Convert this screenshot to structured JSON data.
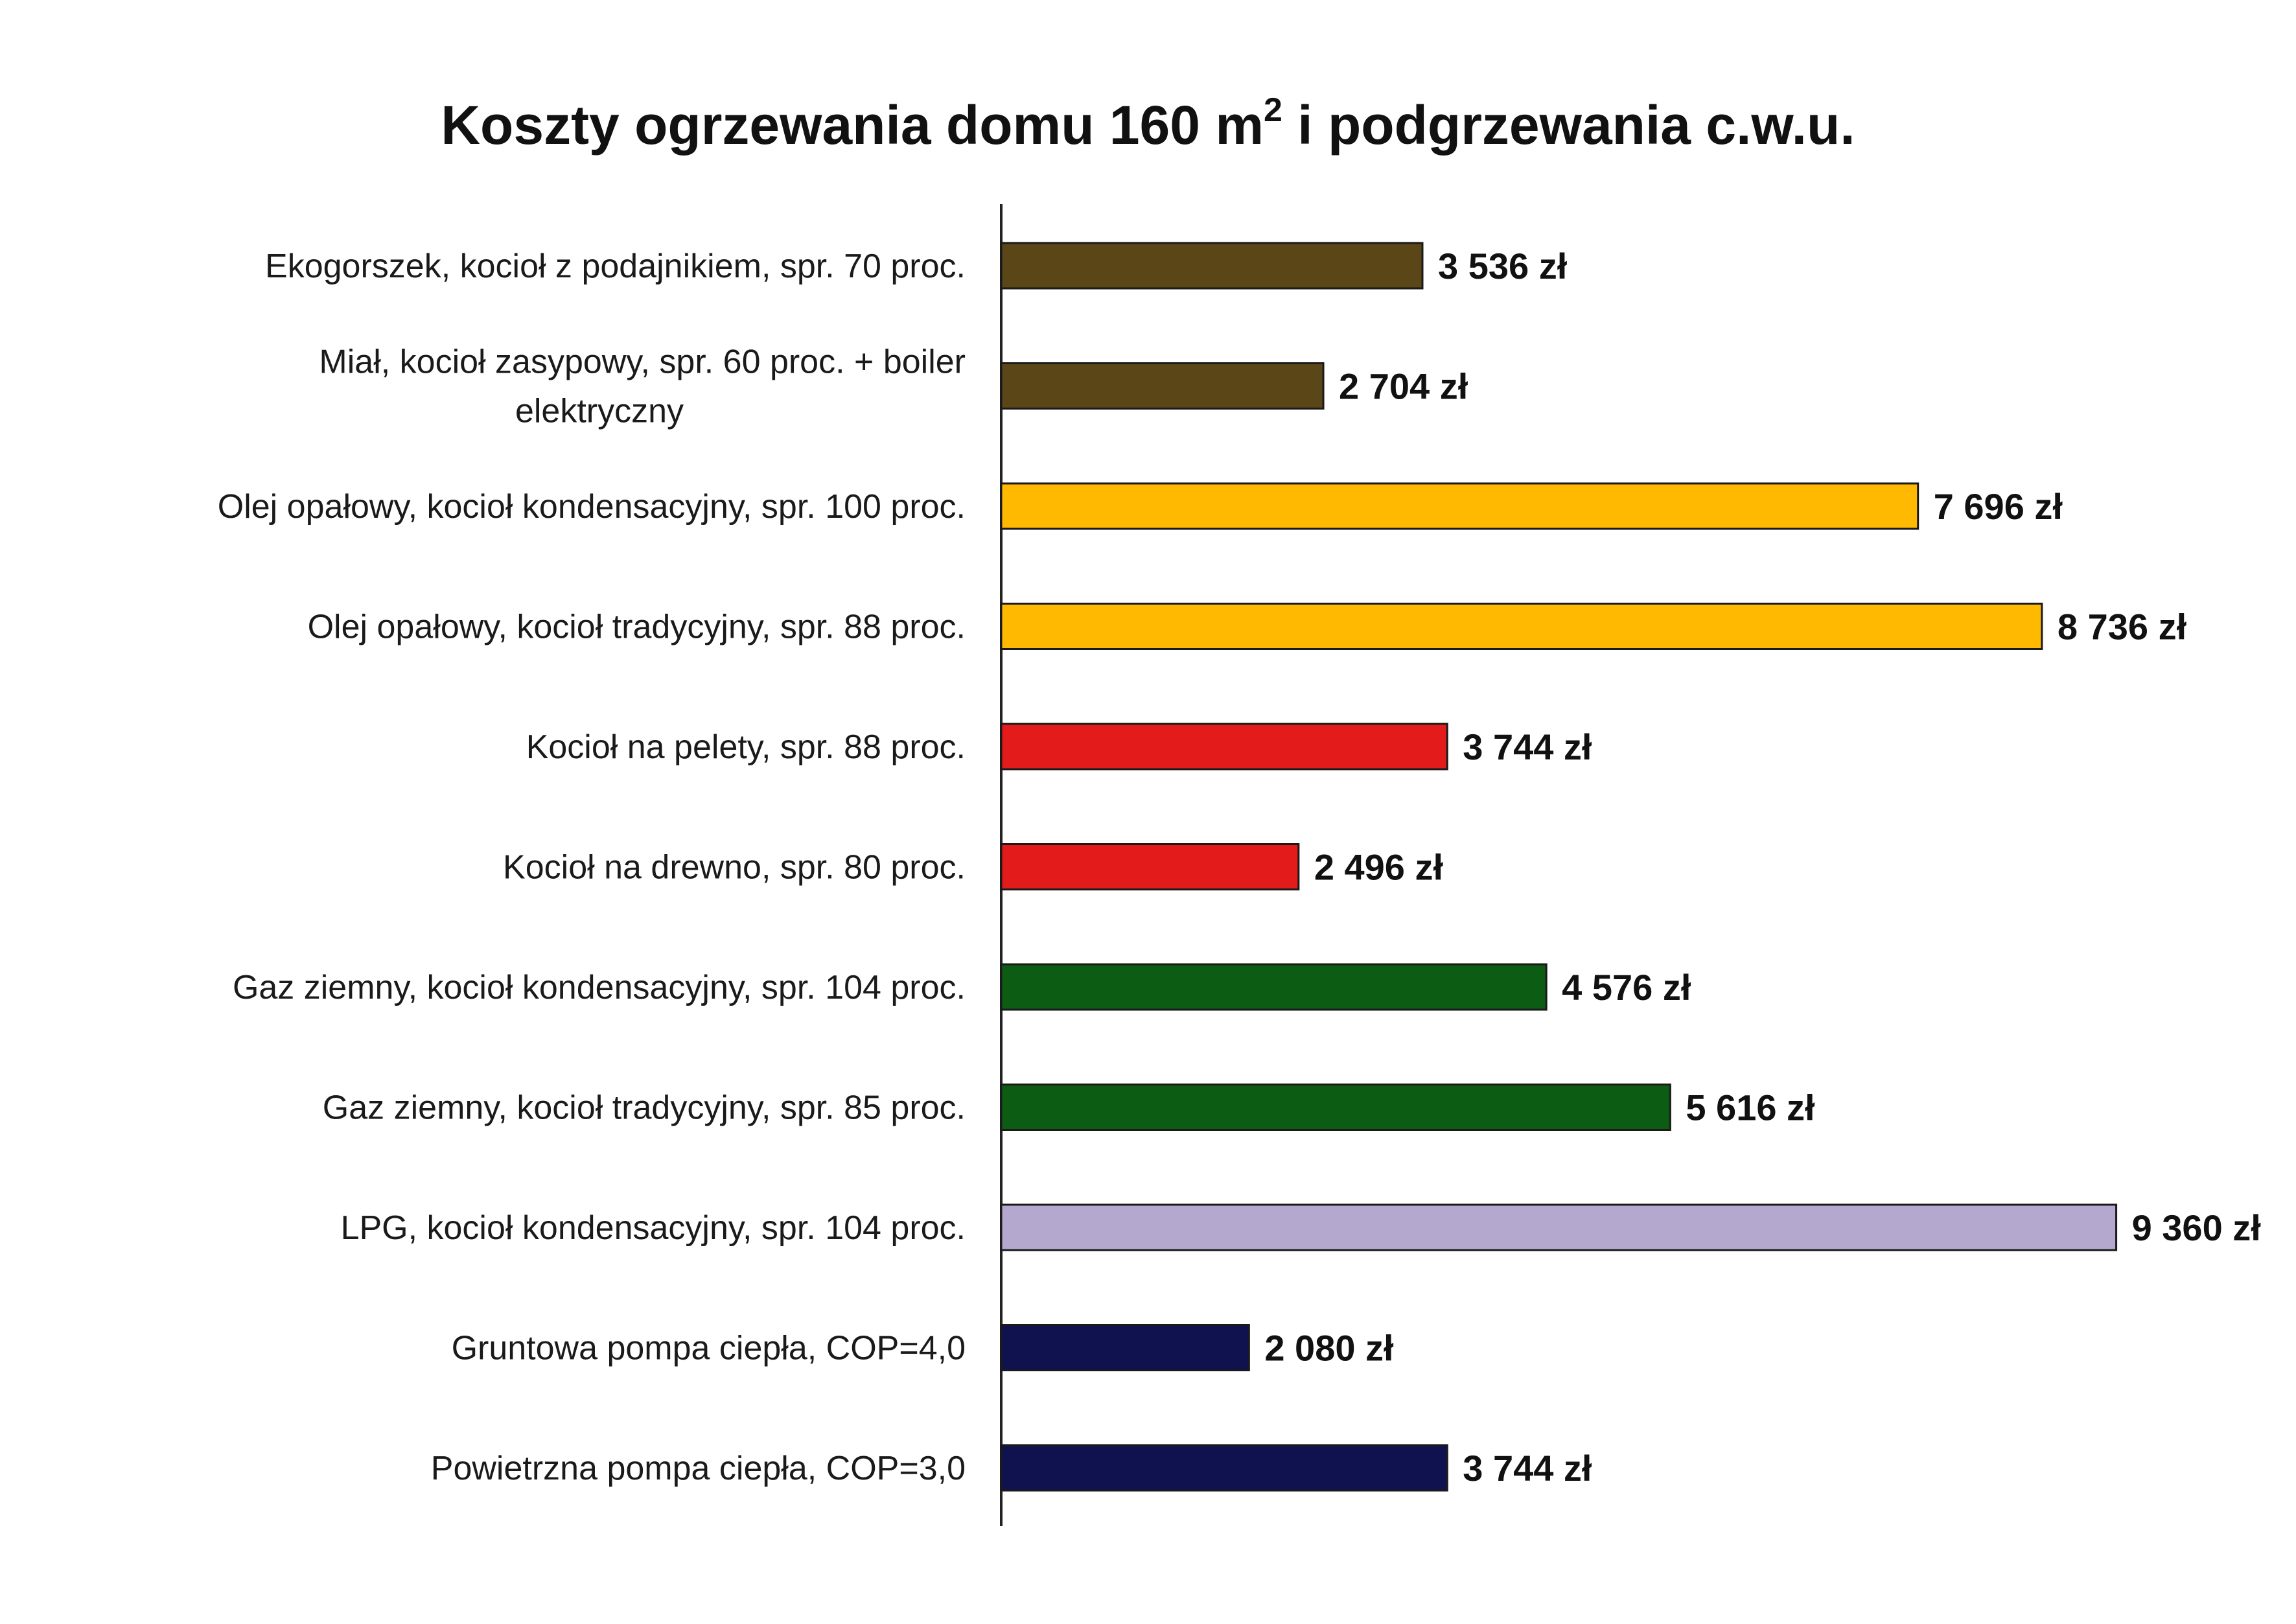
{
  "chart_data": {
    "type": "bar",
    "orientation": "horizontal",
    "title_main": "Koszty ogrzewania domu 160 m",
    "title_sup": "2",
    "title_rest": " i podgrzewania c.w.u.",
    "unit_suffix": " zł",
    "xlim": [
      0,
      10200
    ],
    "grid": false,
    "legend": "none",
    "categories": [
      [
        "Ekogorszek, kocioł z podajnikiem, spr. 70 proc."
      ],
      [
        "Miał, kocioł zasypowy, spr. 60 proc. + boiler",
        "elektryczny"
      ],
      [
        "Olej opałowy, kocioł kondensacyjny, spr. 100 proc."
      ],
      [
        "Olej opałowy, kocioł tradycyjny, spr. 88 proc."
      ],
      [
        "Kocioł na pelety, spr. 88 proc."
      ],
      [
        "Kocioł na drewno, spr. 80 proc."
      ],
      [
        "Gaz ziemny, kocioł kondensacyjny, spr. 104 proc."
      ],
      [
        "Gaz ziemny, kocioł tradycyjny, spr. 85 proc."
      ],
      [
        "LPG, kocioł kondensacyjny, spr. 104 proc."
      ],
      [
        "Gruntowa pompa ciepła, COP=4,0"
      ],
      [
        "Powietrzna pompa ciepła, COP=3,0"
      ]
    ],
    "values": [
      3536,
      2704,
      7696,
      8736,
      3744,
      2496,
      4576,
      5616,
      9360,
      2080,
      3744
    ],
    "value_labels": [
      "3 536 zł",
      "2 704 zł",
      "7 696 zł",
      "8 736 zł",
      "3 744 zł",
      "2 496 zł",
      "4 576 zł",
      "5 616 zł",
      "9 360 zł",
      "2 080 zł",
      "3 744 zł"
    ],
    "colors": [
      "#5a4616",
      "#5a4616",
      "#ffb900",
      "#ffb900",
      "#e31b1b",
      "#e31b1b",
      "#0d5c14",
      "#0d5c14",
      "#b5a8cf",
      "#10124f",
      "#10124f"
    ],
    "axis_color": "#222222",
    "bar_edge_color": "#1a1a1a"
  }
}
